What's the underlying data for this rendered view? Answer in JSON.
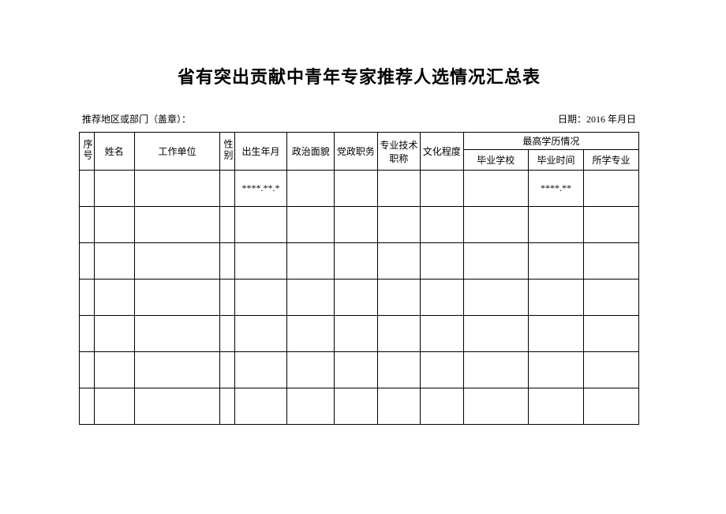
{
  "title": "省有突出贡献中青年专家推荐人选情况汇总表",
  "meta": {
    "left": "推荐地区或部门（盖章）：",
    "right": "日期：2016 年月日"
  },
  "headers": {
    "seq": "序号",
    "name": "姓名",
    "work_unit": "工作单位",
    "gender": "性别",
    "birth": "出生年月",
    "political": "政治面貌",
    "party_post": "党政职务",
    "tech_title": "专业技术职称",
    "culture": "文化程度",
    "edu_group": "最高学历情况",
    "edu_school": "毕业学校",
    "edu_time": "毕业时间",
    "edu_major": "所学专业"
  },
  "rows": [
    {
      "seq": "",
      "name": "",
      "work_unit": "",
      "gender": "",
      "birth": "****.**.*",
      "political": "",
      "party_post": "",
      "tech_title": "",
      "culture": "",
      "edu_school": "",
      "edu_time": "****.**",
      "edu_major": ""
    },
    {
      "seq": "",
      "name": "",
      "work_unit": "",
      "gender": "",
      "birth": "",
      "political": "",
      "party_post": "",
      "tech_title": "",
      "culture": "",
      "edu_school": "",
      "edu_time": "",
      "edu_major": ""
    },
    {
      "seq": "",
      "name": "",
      "work_unit": "",
      "gender": "",
      "birth": "",
      "political": "",
      "party_post": "",
      "tech_title": "",
      "culture": "",
      "edu_school": "",
      "edu_time": "",
      "edu_major": ""
    },
    {
      "seq": "",
      "name": "",
      "work_unit": "",
      "gender": "",
      "birth": "",
      "political": "",
      "party_post": "",
      "tech_title": "",
      "culture": "",
      "edu_school": "",
      "edu_time": "",
      "edu_major": ""
    },
    {
      "seq": "",
      "name": "",
      "work_unit": "",
      "gender": "",
      "birth": "",
      "political": "",
      "party_post": "",
      "tech_title": "",
      "culture": "",
      "edu_school": "",
      "edu_time": "",
      "edu_major": ""
    },
    {
      "seq": "",
      "name": "",
      "work_unit": "",
      "gender": "",
      "birth": "",
      "political": "",
      "party_post": "",
      "tech_title": "",
      "culture": "",
      "edu_school": "",
      "edu_time": "",
      "edu_major": ""
    },
    {
      "seq": "",
      "name": "",
      "work_unit": "",
      "gender": "",
      "birth": "",
      "political": "",
      "party_post": "",
      "tech_title": "",
      "culture": "",
      "edu_school": "",
      "edu_time": "",
      "edu_major": ""
    }
  ],
  "row_count": 7
}
